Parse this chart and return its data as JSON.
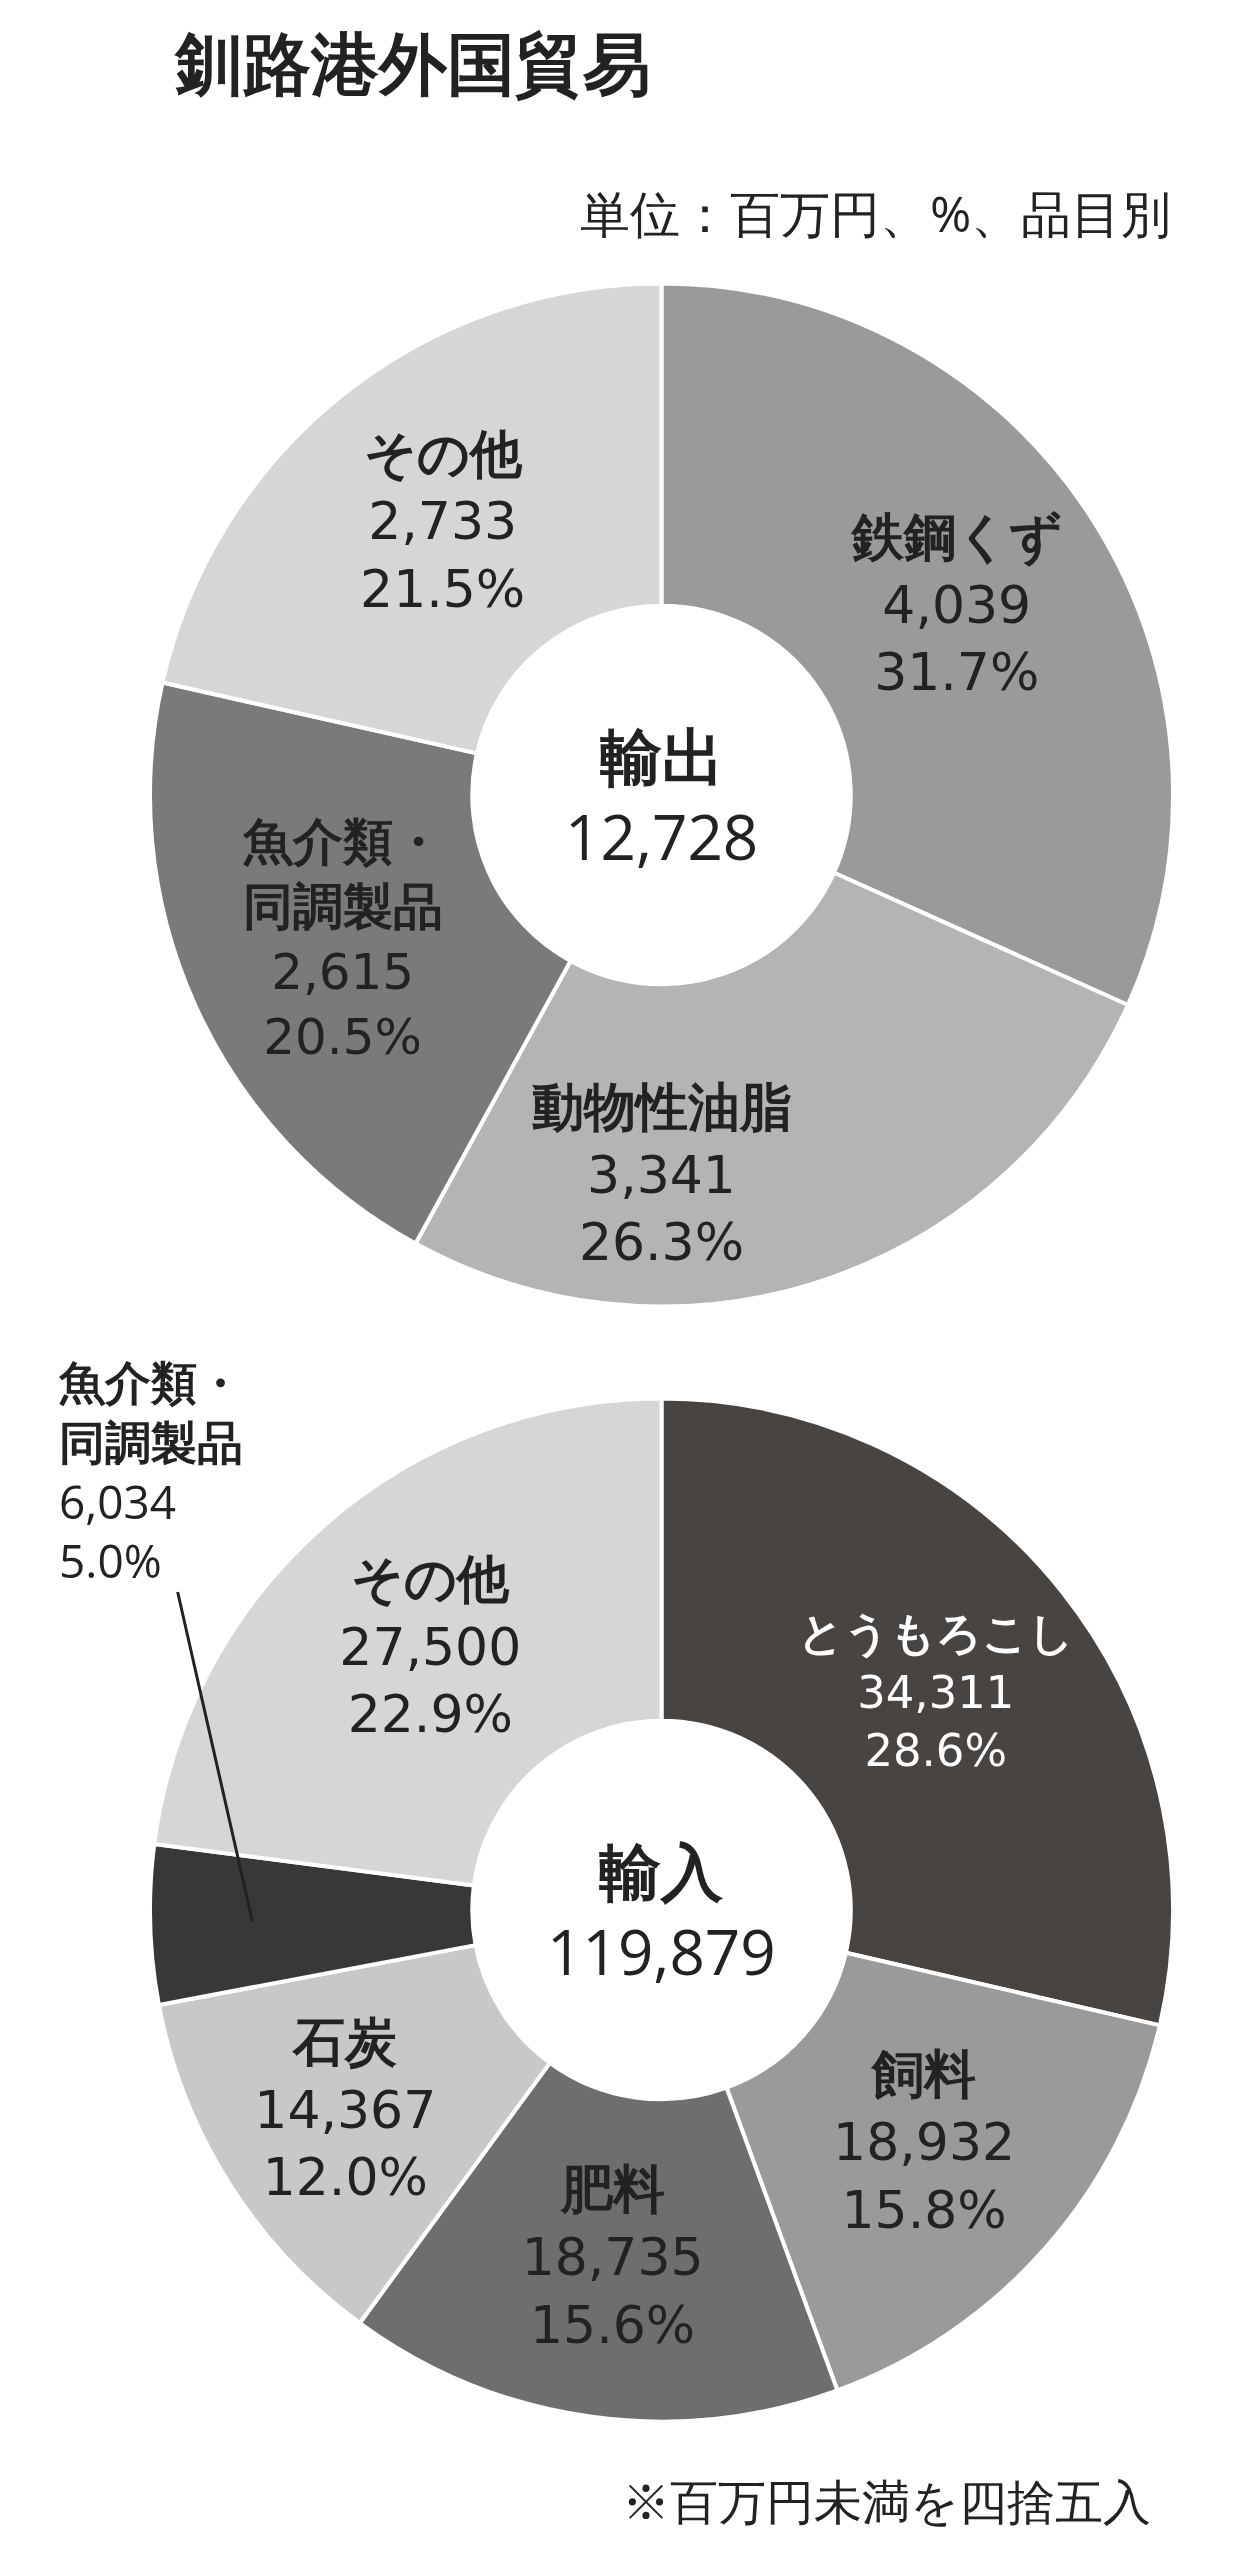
{
  "chart_data": [
    {
      "type": "donut",
      "title": "釧路港外国貿易",
      "subtitle": "単位：百万円、%、品目別",
      "categories": [
        "鉄鋼くず",
        "動物性油脂",
        "魚介類・同調製品",
        "その他"
      ],
      "values": [
        4039,
        3341,
        2615,
        2733
      ],
      "value_labels": [
        "4,039\n31.7%",
        "3,341\n26.3%",
        "2,615\n20.5%",
        "2,733\n21.5%"
      ],
      "colors": [
        "#9a9a9a",
        "#b4b4b4",
        "#7a7a7a",
        "#d6d6d6"
      ],
      "annotations": [
        "輸出\n12,728"
      ]
    },
    {
      "type": "donut",
      "categories": [
        "とうもろこし",
        "飼料",
        "肥料",
        "石炭",
        "魚介類・同調製品",
        "その他"
      ],
      "values": [
        34311,
        18932,
        18735,
        14367,
        6034,
        27500
      ],
      "value_labels": [
        "34,311\n28.6%",
        "18,932\n15.8%",
        "18,735\n15.6%",
        "14,367\n12.0%",
        "6,034\n5.0%",
        "27,500\n22.9%"
      ],
      "colors": [
        "#474442",
        "#9a9a9a",
        "#6e6e6e",
        "#c8c8c8",
        "#3a3836",
        "#d6d6d6"
      ],
      "annotations": [
        "輸入\n119,879",
        "※百万円未満を四捨五入"
      ]
    }
  ]
}
